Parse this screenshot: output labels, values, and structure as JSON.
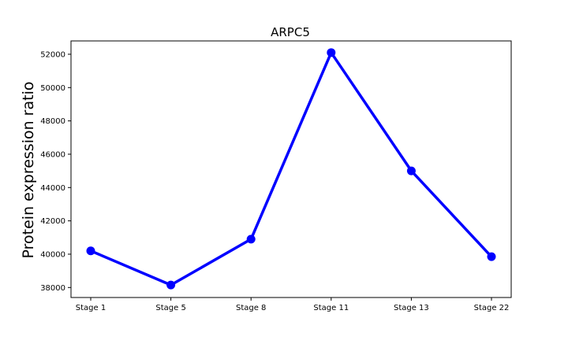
{
  "chart_data": {
    "type": "line",
    "title": "ARPC5",
    "xlabel": "",
    "ylabel": "Protein expression ratio",
    "categories": [
      "Stage 1",
      "Stage 5",
      "Stage 8",
      "Stage 11",
      "Stage 13",
      "Stage 22"
    ],
    "series": [
      {
        "values": [
          40200,
          38150,
          40900,
          52100,
          45000,
          39850
        ]
      }
    ],
    "yticks": [
      "38000",
      "40000",
      "42000",
      "44000",
      "46000",
      "48000",
      "50000",
      "52000"
    ],
    "ylim": [
      37400,
      52800
    ],
    "grid": false,
    "line_color": "#0000ff"
  }
}
